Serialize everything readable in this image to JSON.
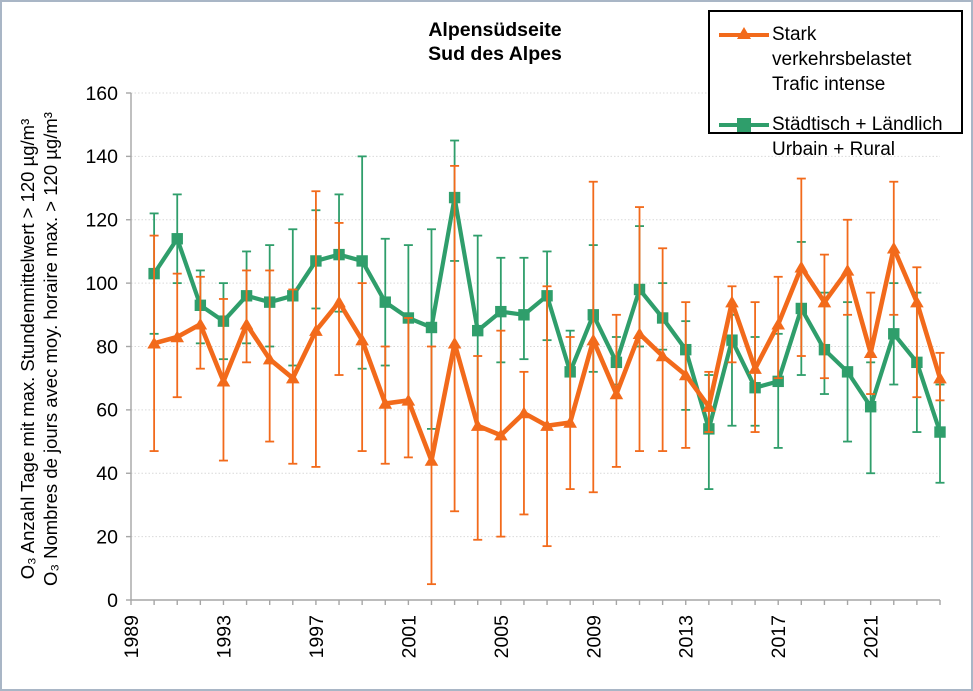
{
  "frame": {
    "border_color": "#a9b6c6",
    "background": "#ffffff"
  },
  "title": {
    "line1": "Alpensüdseite",
    "line2": "Sud des Alpes"
  },
  "y_axis": {
    "title_line1": "O₃ Anzahl Tage mit max. Stundenmittelwert > 120 µg/m³",
    "title_line2": "O₃ Nombres de jours avec moy. horaire max. > 120 µg/m³",
    "min": 0,
    "max": 160,
    "tick_step": 20,
    "tick_labels": [
      "0",
      "20",
      "40",
      "60",
      "80",
      "100",
      "120",
      "140",
      "160"
    ]
  },
  "x_axis": {
    "first_tick_year": 1989,
    "last_tick_year": 2024,
    "label_interval": 4,
    "labels": [
      "1989",
      "1993",
      "1997",
      "2001",
      "2005",
      "2009",
      "2013",
      "2017",
      "2021"
    ]
  },
  "legend": {
    "items": [
      {
        "label_line1": "Stark verkehrsbelastet",
        "label_line2": "Trafic intense",
        "color": "#F26A1B",
        "marker": "triangle"
      },
      {
        "label_line1": "Städtisch + Ländlich",
        "label_line2": "Urbain + Rural",
        "color": "#2F9E6B",
        "marker": "square"
      }
    ]
  },
  "chart_data": {
    "type": "line",
    "title": "Alpensüdseite / Sud des Alpes",
    "ylabel": "O3 Anzahl Tage mit max. Stundenmittelwert > 120 µg/m³ / O3 Nombres de jours avec moy. horaire max. > 120 µg/m³",
    "ylim": [
      0,
      160
    ],
    "grid": true,
    "legend_position": "top-right",
    "x": [
      1990,
      1991,
      1992,
      1993,
      1994,
      1995,
      1996,
      1997,
      1998,
      1999,
      2000,
      2001,
      2002,
      2003,
      2004,
      2005,
      2006,
      2007,
      2008,
      2009,
      2010,
      2011,
      2012,
      2013,
      2014,
      2015,
      2016,
      2017,
      2018,
      2019,
      2020,
      2021,
      2022,
      2023,
      2024
    ],
    "series": [
      {
        "name": "Städtisch + Ländlich / Urbain + Rural",
        "color": "#2F9E6B",
        "marker": "square",
        "values": [
          103,
          114,
          93,
          88,
          96,
          94,
          96,
          107,
          109,
          107,
          94,
          89,
          86,
          127,
          85,
          91,
          90,
          96,
          72,
          90,
          75,
          98,
          89,
          79,
          54,
          82,
          67,
          69,
          92,
          79,
          72,
          61,
          84,
          75,
          53
        ],
        "err_low": [
          84,
          100,
          81,
          76,
          81,
          80,
          74,
          92,
          91,
          73,
          74,
          62,
          54,
          107,
          54,
          75,
          76,
          82,
          55,
          72,
          68,
          80,
          79,
          60,
          35,
          55,
          55,
          48,
          71,
          65,
          50,
          40,
          68,
          53,
          37
        ],
        "err_high": [
          122,
          128,
          104,
          100,
          110,
          112,
          117,
          123,
          128,
          140,
          114,
          112,
          117,
          145,
          115,
          108,
          108,
          110,
          85,
          112,
          83,
          118,
          100,
          88,
          71,
          90,
          83,
          84,
          113,
          97,
          94,
          75,
          100,
          97,
          68
        ]
      },
      {
        "name": "Stark verkehrsbelastet / Trafic intense",
        "color": "#F26A1B",
        "marker": "triangle",
        "values": [
          81,
          83,
          87,
          69,
          87,
          76,
          70,
          85,
          94,
          82,
          62,
          63,
          44,
          81,
          55,
          52,
          59,
          55,
          56,
          82,
          65,
          84,
          77,
          71,
          61,
          94,
          73,
          87,
          105,
          94,
          104,
          78,
          111,
          94,
          70
        ],
        "err_low": [
          47,
          64,
          73,
          44,
          75,
          50,
          43,
          42,
          71,
          47,
          43,
          45,
          5,
          28,
          19,
          20,
          27,
          17,
          35,
          34,
          42,
          47,
          47,
          48,
          53,
          75,
          53,
          70,
          77,
          70,
          90,
          65,
          90,
          64,
          63
        ],
        "err_high": [
          115,
          103,
          102,
          95,
          104,
          104,
          98,
          129,
          119,
          100,
          80,
          89,
          80,
          137,
          77,
          85,
          72,
          99,
          83,
          132,
          90,
          124,
          111,
          94,
          72,
          99,
          94,
          102,
          133,
          109,
          120,
          97,
          132,
          105,
          78
        ]
      }
    ]
  }
}
